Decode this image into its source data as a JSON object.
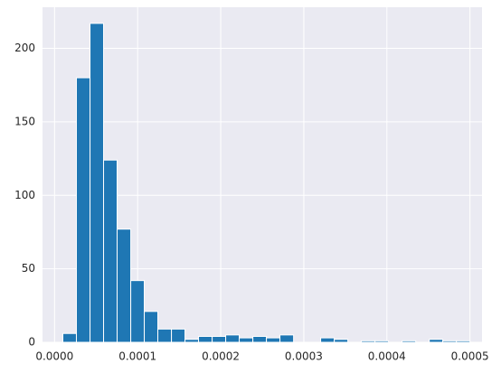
{
  "chart_data": {
    "type": "histogram",
    "bins": [
      1e-05,
      2.63e-05,
      4.27e-05,
      5.9e-05,
      7.53e-05,
      9.17e-05,
      0.000108,
      0.0001243,
      0.0001407,
      0.000157,
      0.0001733,
      0.0001897,
      0.000206,
      0.0002223,
      0.0002387,
      0.000255,
      0.0002713,
      0.0002877,
      0.000304,
      0.0003203,
      0.0003367,
      0.000353,
      0.0003693,
      0.0003857,
      0.000402,
      0.0004183,
      0.0004347,
      0.000451,
      0.0004673,
      0.0004837,
      0.0005
    ],
    "values": [
      6,
      180,
      217,
      124,
      77,
      42,
      21,
      9,
      9,
      2,
      4,
      4,
      5,
      3,
      4,
      3,
      5,
      0,
      0,
      3,
      2,
      0,
      1,
      1,
      0,
      1,
      0,
      2,
      1,
      1
    ],
    "color": "#1f77b4",
    "xlim": [
      -1.45e-05,
      0.0005145
    ],
    "xticks": [
      {
        "value": 0,
        "label": "0.0000"
      },
      {
        "value": 0.0001,
        "label": "0.0001"
      },
      {
        "value": 0.0002,
        "label": "0.0002"
      },
      {
        "value": 0.0003,
        "label": "0.0003"
      },
      {
        "value": 0.0004,
        "label": "0.0004"
      },
      {
        "value": 0.0005,
        "label": "0.0005"
      }
    ],
    "ylim": [
      0,
      228
    ],
    "yticks": [
      0,
      50,
      100,
      150,
      200
    ],
    "grid": true
  }
}
